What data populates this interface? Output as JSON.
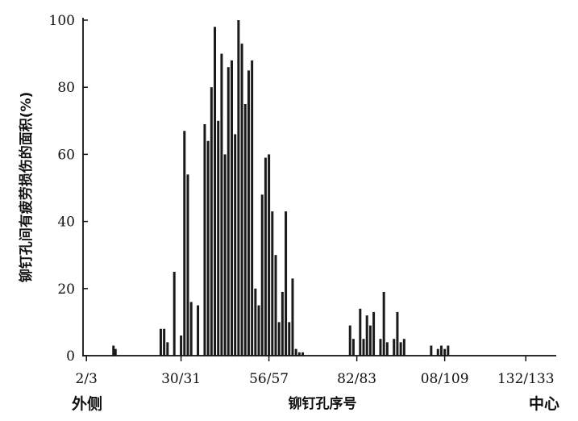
{
  "chart_data": {
    "type": "bar",
    "title": "",
    "ylabel": "铆钉孔间有疲劳损伤的面积(%)",
    "xlabel": "铆钉孔序号",
    "x_side_labels": {
      "left": "外侧",
      "right": "中心"
    },
    "ylim": [
      0,
      100
    ],
    "y_ticks": [
      0,
      20,
      40,
      60,
      80,
      100
    ],
    "xlim": [
      1,
      141
    ],
    "x_ticks": [
      {
        "pos": 2,
        "label": "2/3"
      },
      {
        "pos": 30,
        "label": "30/31"
      },
      {
        "pos": 56,
        "label": "56/57"
      },
      {
        "pos": 82,
        "label": "82/83"
      },
      {
        "pos": 108,
        "label": "08/109"
      },
      {
        "pos": 132,
        "label": "132/133"
      }
    ],
    "grid": false,
    "legend": "none",
    "bar_color": "#1a1a1a",
    "series": [
      {
        "x": [
          10,
          10.6,
          24,
          25,
          26,
          28,
          30,
          31,
          32,
          33,
          35,
          37,
          38,
          39,
          40,
          41,
          42,
          43,
          44,
          45,
          46,
          47,
          48,
          49,
          50,
          51,
          52,
          53,
          54,
          55,
          56,
          57,
          58,
          59,
          60,
          61,
          62,
          63,
          64,
          65,
          66,
          80,
          81,
          83,
          84,
          85,
          86,
          87,
          89,
          90,
          91,
          93,
          94,
          95,
          96,
          104,
          106,
          107,
          108,
          109
        ],
        "values": [
          3,
          2,
          8,
          8,
          4,
          25,
          6,
          67,
          54,
          16,
          15,
          69,
          64,
          80,
          98,
          70,
          90,
          60,
          86,
          88,
          66,
          100,
          93,
          75,
          85,
          88,
          20,
          15,
          48,
          59,
          60,
          43,
          30,
          10,
          19,
          43,
          10,
          23,
          2,
          1,
          1,
          9,
          5,
          14,
          5,
          12,
          9,
          13,
          5,
          19,
          4,
          5,
          13,
          4,
          5,
          3,
          2,
          3,
          2,
          3
        ]
      }
    ]
  }
}
